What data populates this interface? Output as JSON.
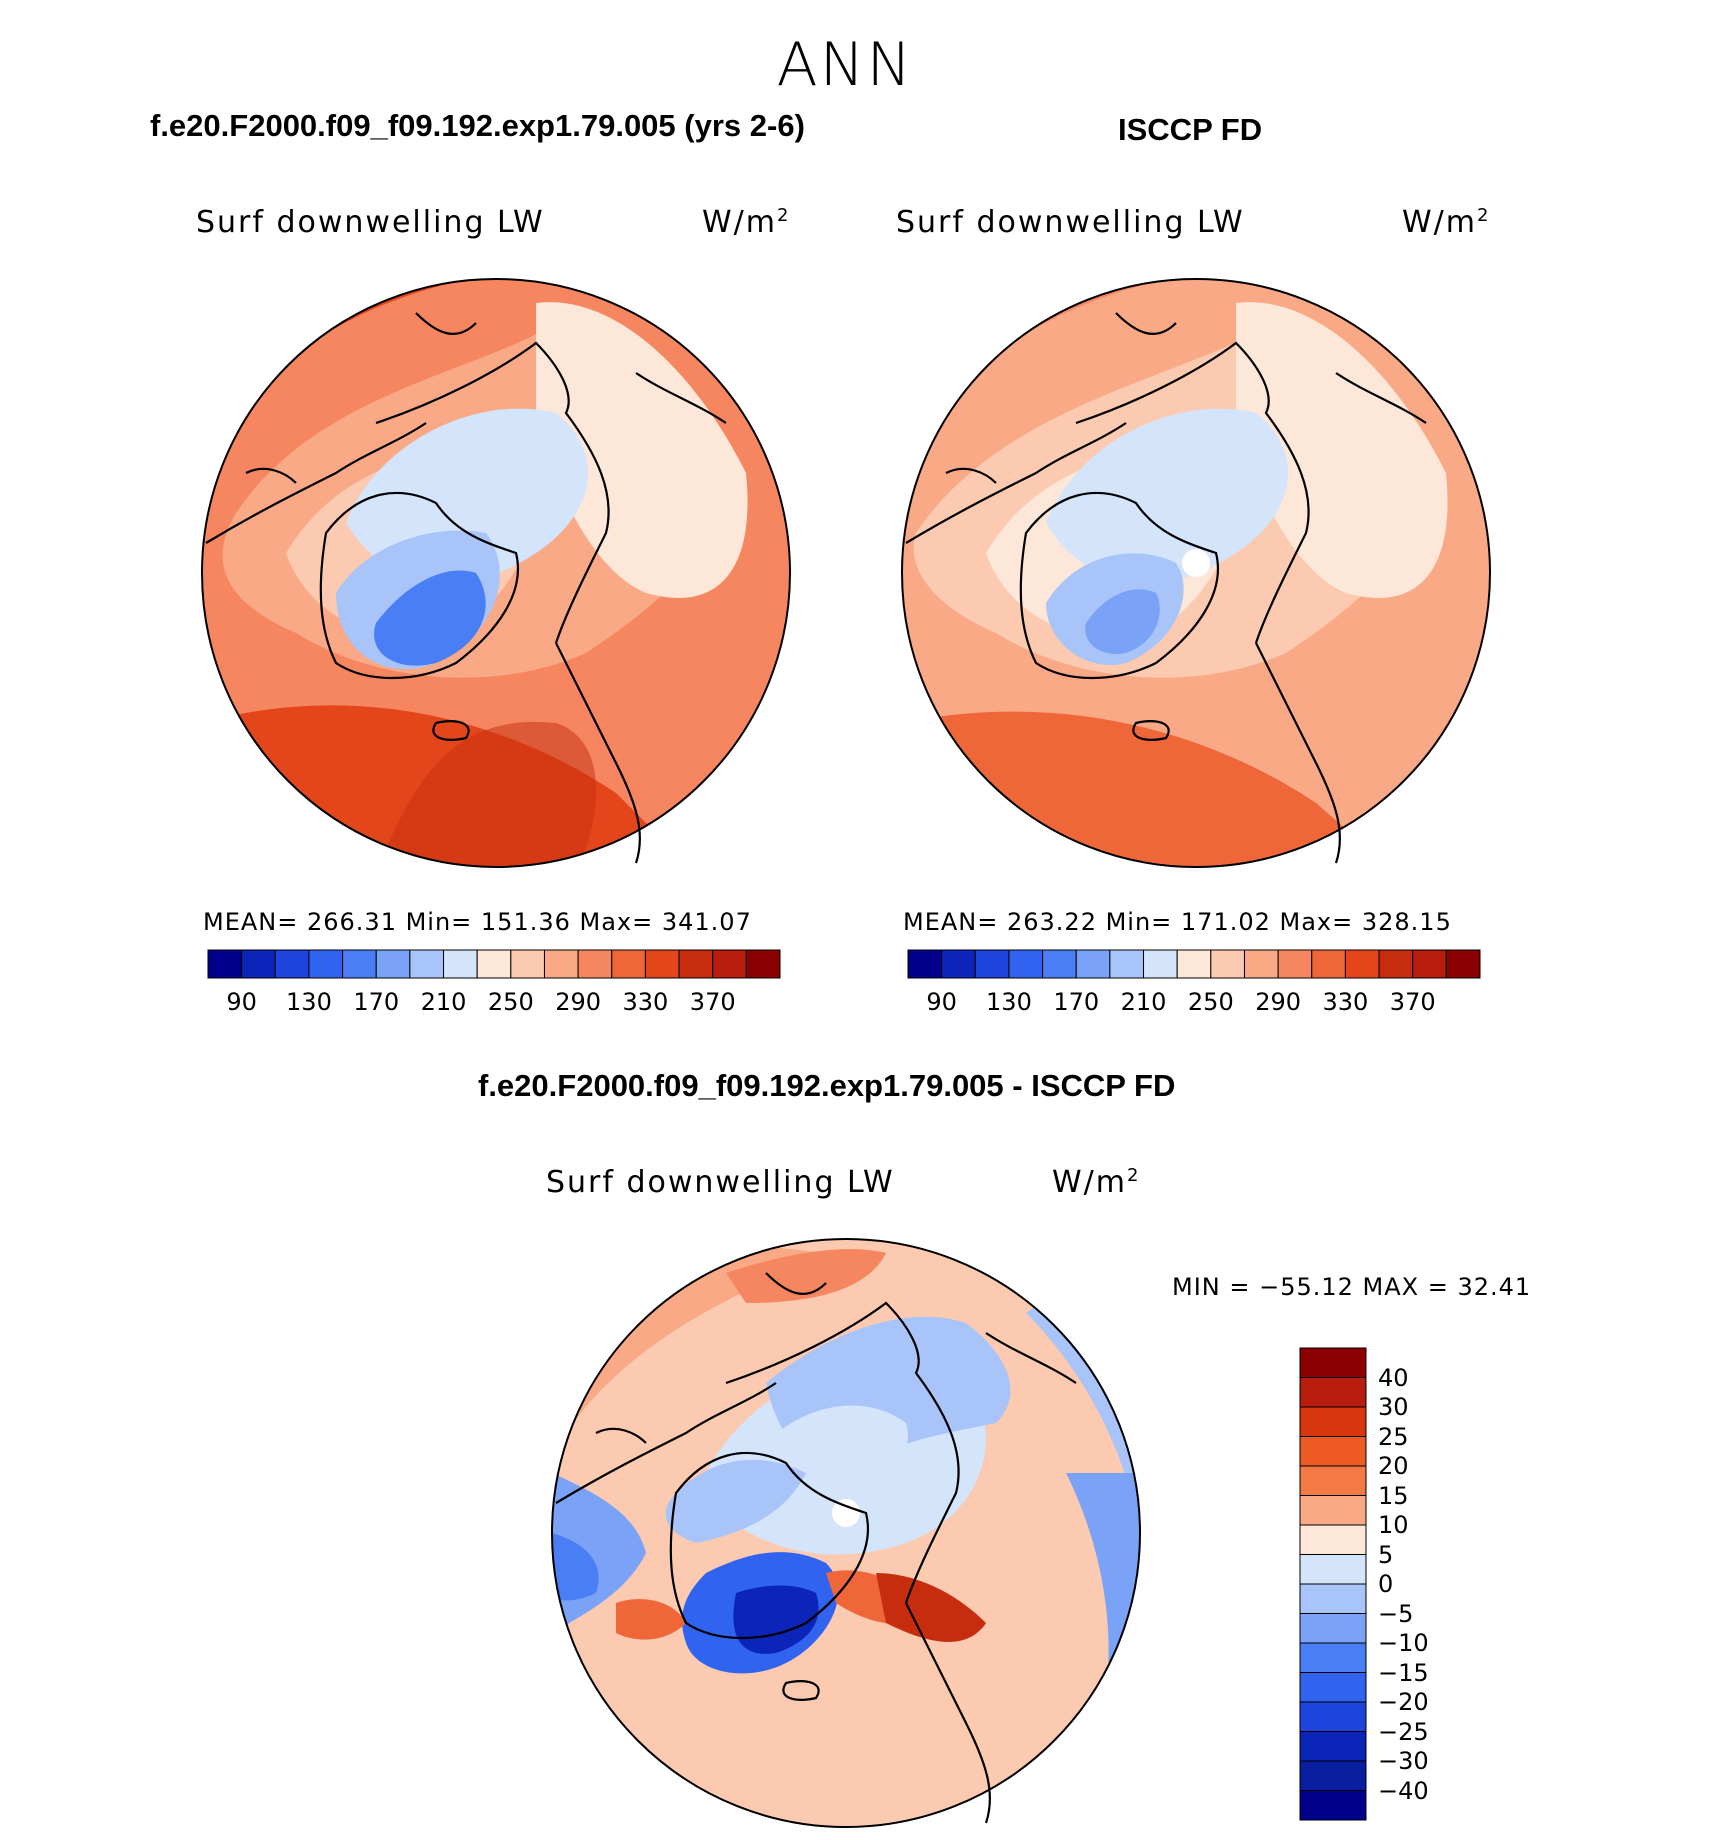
{
  "figure": {
    "season": "ANN",
    "diff_title": "f.e20.F2000.f09_f09.192.exp1.79.005 - ISCCP FD"
  },
  "panels": [
    {
      "title": "f.e20.F2000.f09_f09.192.exp1.79.005 (yrs 2-6)",
      "variable": "Surf downwelling LW",
      "units": "W/m",
      "units_exp": "2",
      "stats": "MEAN=  266.31   Min=  151.36   Max=  341.07"
    },
    {
      "title": "ISCCP FD",
      "variable": "Surf downwelling LW",
      "units": "W/m",
      "units_exp": "2",
      "stats": "MEAN=  263.22   Min=  171.02   Max=  328.15"
    },
    {
      "variable": "Surf downwelling LW",
      "units": "W/m",
      "units_exp": "2",
      "stats": "MIN  =  −55.12  MAX  =    32.41"
    }
  ],
  "colorbar_abs": {
    "ticks": [
      "90",
      "130",
      "170",
      "210",
      "250",
      "290",
      "330",
      "370"
    ],
    "colors": [
      "#00008b",
      "#0a25b8",
      "#1e44dd",
      "#2f63f0",
      "#4a7ef5",
      "#7aa3f7",
      "#a8c4f9",
      "#d3e4fb",
      "#fde7d8",
      "#fbcab0",
      "#f9a986",
      "#f5865f",
      "#ef6639",
      "#e4461c",
      "#c62d0e",
      "#b81c0c",
      "#8b0000"
    ]
  },
  "colorbar_diff": {
    "labels": [
      "40",
      "30",
      "25",
      "20",
      "15",
      "10",
      "5",
      "0",
      "−5",
      "−10",
      "−15",
      "−20",
      "−25",
      "−30",
      "−40"
    ],
    "colors": [
      "#8b0000",
      "#b81c0c",
      "#d8360f",
      "#ee5a23",
      "#f37a45",
      "#f9a986",
      "#fde7d8",
      "#d3e4fb",
      "#a8c4f9",
      "#7aa3f7",
      "#4a7ef5",
      "#2f63f0",
      "#1e44dd",
      "#0a25b8",
      "#0a1ea0",
      "#00008b"
    ]
  }
}
